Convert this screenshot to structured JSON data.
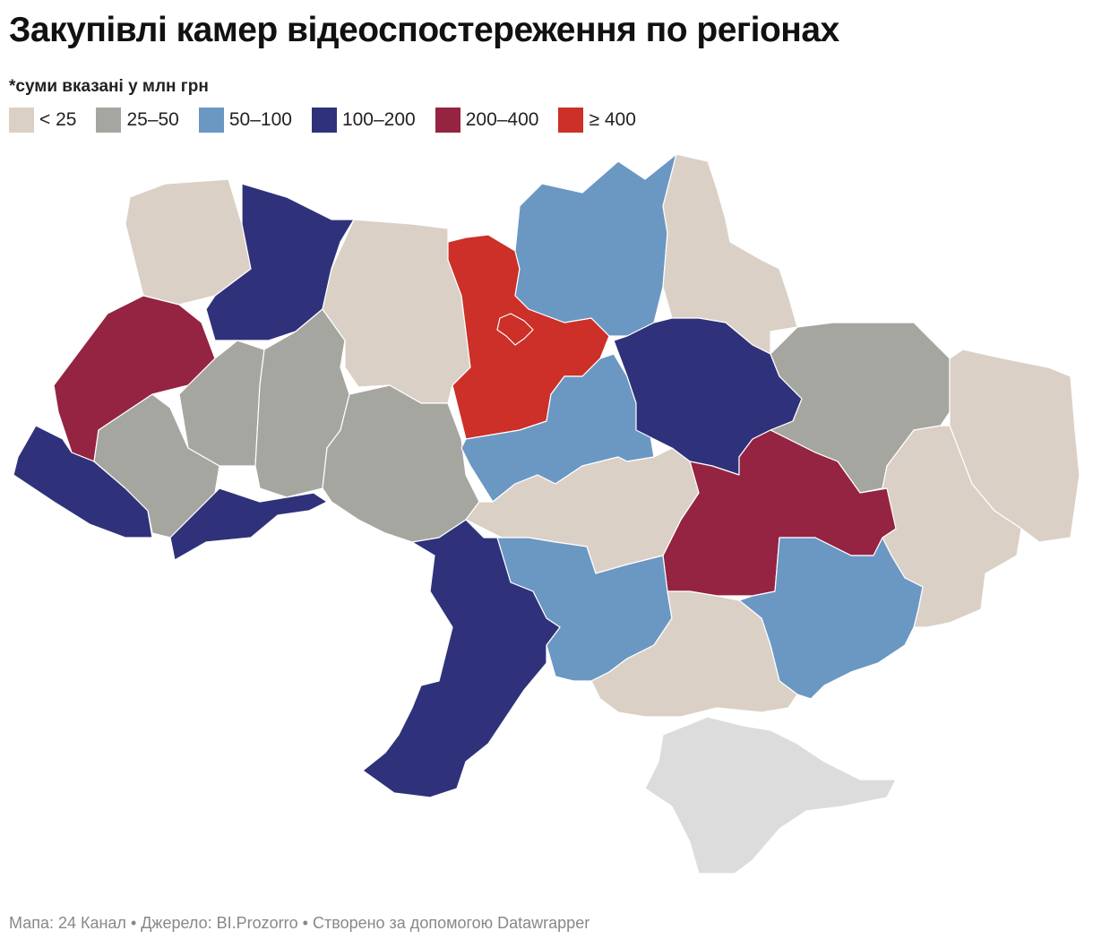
{
  "title": "Закупівлі камер відеоспостереження по регіонах",
  "subtitle": "*суми вказані у млн грн",
  "legend": [
    {
      "label": "< 25",
      "color": "#dbd0c6"
    },
    {
      "label": "25–50",
      "color": "#a6a6a1"
    },
    {
      "label": "50–100",
      "color": "#6b97c3"
    },
    {
      "label": "100–200",
      "color": "#2f327a"
    },
    {
      "label": "200–400",
      "color": "#952342"
    },
    {
      "label": "≥ 400",
      "color": "#cc3028"
    }
  ],
  "footer": "Мапа: 24 Канал • Джерело: BI.Prozorro • Створено за допомогою Datawrapper"
}
